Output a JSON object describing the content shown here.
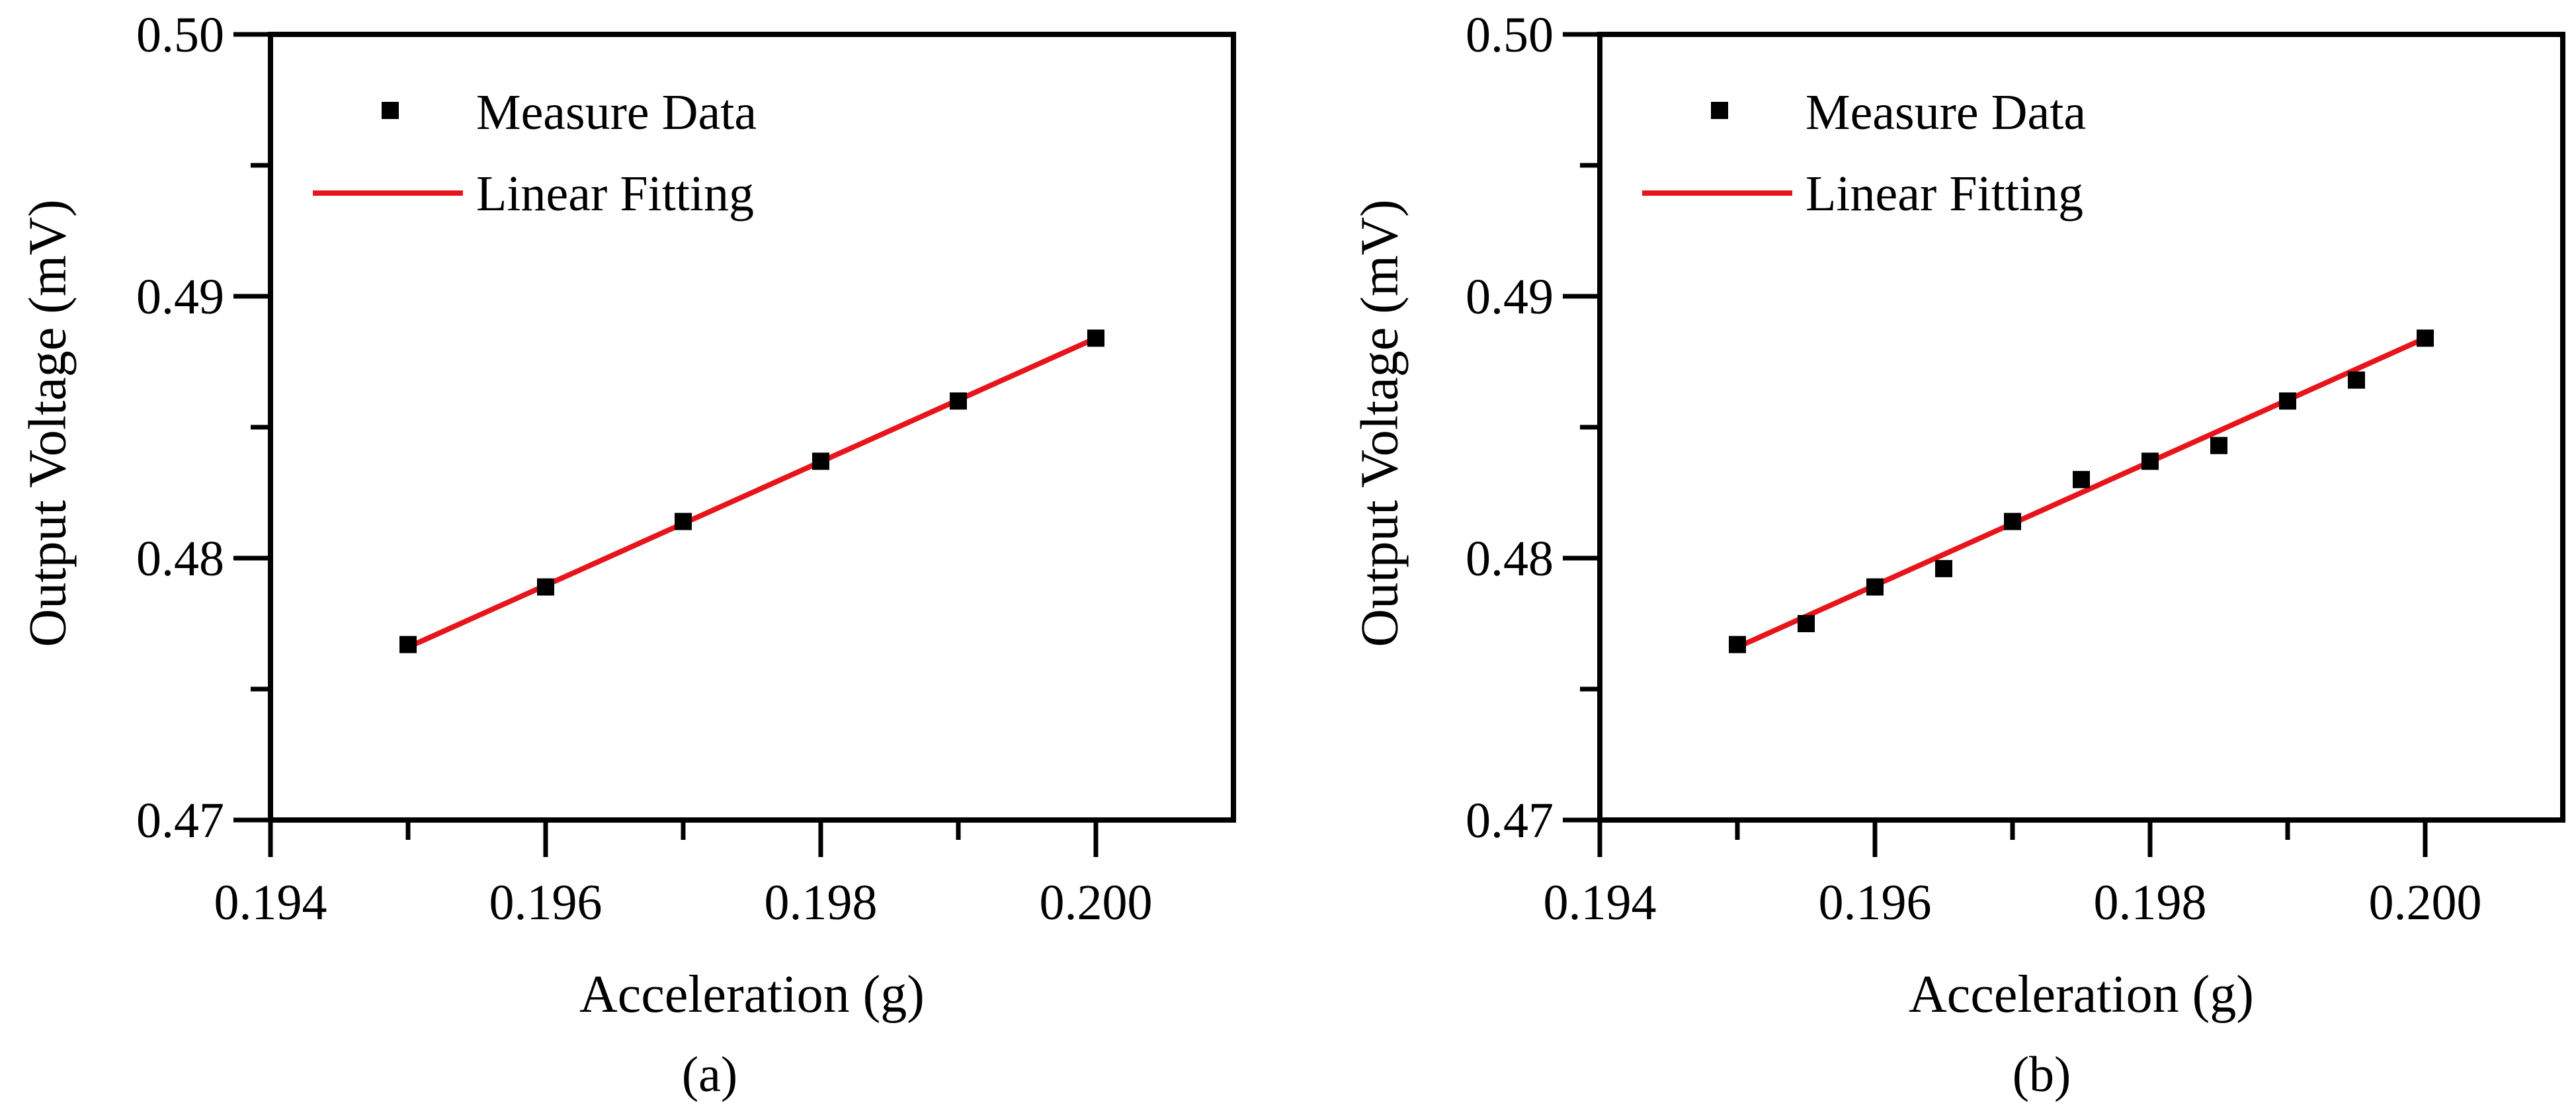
{
  "chart_data": [
    {
      "type": "scatter",
      "caption": "(a)",
      "xlabel": "Acceleration (g)",
      "ylabel": "Output Voltage (mV)",
      "xlim": [
        0.194,
        0.201
      ],
      "ylim": [
        0.47,
        0.5
      ],
      "xticks": [
        0.194,
        0.196,
        0.198,
        0.2
      ],
      "xtick_labels": [
        "0.194",
        "0.196",
        "0.198",
        "0.200"
      ],
      "yticks": [
        0.47,
        0.48,
        0.49,
        0.5
      ],
      "ytick_labels": [
        "0.47",
        "0.48",
        "0.49",
        "0.50"
      ],
      "legend": {
        "position": "top-left",
        "entries": [
          "Measure Data",
          "Linear Fitting"
        ]
      },
      "series": [
        {
          "name": "Measure Data",
          "kind": "points",
          "color": "#000000",
          "x": [
            0.195,
            0.196,
            0.197,
            0.198,
            0.199,
            0.2
          ],
          "y": [
            0.4767,
            0.4789,
            0.4814,
            0.4837,
            0.486,
            0.4884
          ]
        },
        {
          "name": "Linear Fitting",
          "kind": "line",
          "color": "#e8141b",
          "x": [
            0.195,
            0.2
          ],
          "y": [
            0.4766,
            0.4884
          ]
        }
      ]
    },
    {
      "type": "scatter",
      "caption": "(b)",
      "xlabel": "Acceleration (g)",
      "ylabel": "Output Voltage (mV)",
      "xlim": [
        0.194,
        0.201
      ],
      "ylim": [
        0.47,
        0.5
      ],
      "xticks": [
        0.194,
        0.196,
        0.198,
        0.2
      ],
      "xtick_labels": [
        "0.194",
        "0.196",
        "0.198",
        "0.200"
      ],
      "yticks": [
        0.47,
        0.48,
        0.49,
        0.5
      ],
      "ytick_labels": [
        "0.47",
        "0.48",
        "0.49",
        "0.50"
      ],
      "legend": {
        "position": "top-left",
        "entries": [
          "Measure Data",
          "Linear Fitting"
        ]
      },
      "series": [
        {
          "name": "Measure Data",
          "kind": "points",
          "color": "#000000",
          "x": [
            0.195,
            0.1955,
            0.196,
            0.1965,
            0.197,
            0.1975,
            0.198,
            0.1985,
            0.199,
            0.1995,
            0.2
          ],
          "y": [
            0.4767,
            0.4775,
            0.4789,
            0.4796,
            0.4814,
            0.483,
            0.4837,
            0.4843,
            0.486,
            0.4868,
            0.4884
          ]
        },
        {
          "name": "Linear Fitting",
          "kind": "line",
          "color": "#e8141b",
          "x": [
            0.195,
            0.2
          ],
          "y": [
            0.4766,
            0.4884
          ]
        }
      ]
    }
  ]
}
